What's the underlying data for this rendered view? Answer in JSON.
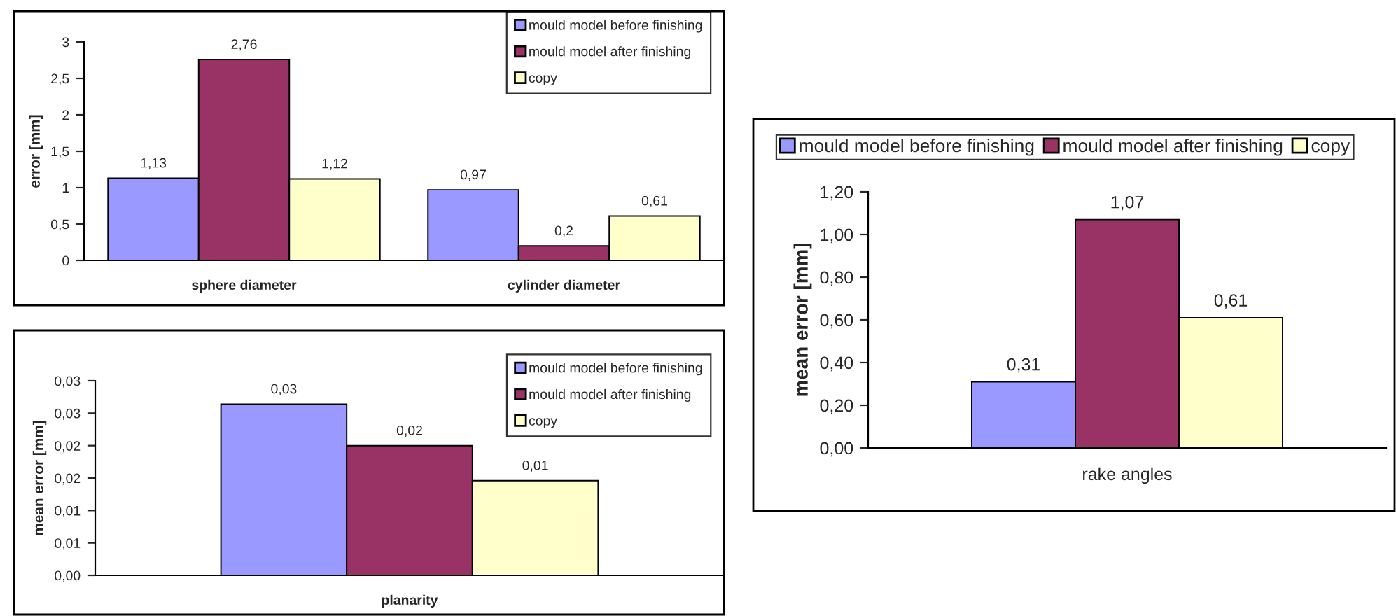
{
  "chart_data": [
    {
      "type": "bar",
      "ylabel": "error [mm]",
      "categories": [
        "sphere diameter",
        "cylinder diameter"
      ],
      "series": [
        {
          "name": "mould model before finishing",
          "color": "#9999ff",
          "values": [
            1.13,
            0.97
          ],
          "value_labels": [
            "1,13",
            "0,97"
          ]
        },
        {
          "name": "mould model after finishing",
          "color": "#993366",
          "values": [
            2.76,
            0.2
          ],
          "value_labels": [
            "2,76",
            "0,2"
          ]
        },
        {
          "name": "copy",
          "color": "#ffffcc",
          "values": [
            1.12,
            0.61
          ],
          "value_labels": [
            "1,12",
            "0,61"
          ]
        }
      ],
      "ylim": [
        0,
        3
      ],
      "yticks": [
        0,
        {
          "value": 0.5,
          "label": "0,5"
        },
        1,
        {
          "value": 1.5,
          "label": "1,5"
        },
        2,
        {
          "value": 2.5,
          "label": "2,5"
        },
        3
      ],
      "grid": false,
      "legend": "top right"
    },
    {
      "type": "bar",
      "ylabel": "mean error [mm]",
      "categories": [
        "planarity"
      ],
      "series": [
        {
          "name": "mould model before finishing",
          "color": "#9999ff",
          "values": [
            0.0264
          ],
          "value_labels": [
            "0,03"
          ]
        },
        {
          "name": "mould model after finishing",
          "color": "#993366",
          "values": [
            0.02
          ],
          "value_labels": [
            "0,02"
          ]
        },
        {
          "name": "copy",
          "color": "#ffffcc",
          "values": [
            0.0146
          ],
          "value_labels": [
            "0,01"
          ]
        }
      ],
      "ylim": [
        0,
        0.03
      ],
      "yticks": [
        {
          "value": 0,
          "label": "0,00"
        },
        {
          "value": 0.005,
          "label": "0,01"
        },
        {
          "value": 0.01,
          "label": "0,01"
        },
        {
          "value": 0.015,
          "label": "0,02"
        },
        {
          "value": 0.02,
          "label": "0,02"
        },
        {
          "value": 0.025,
          "label": "0,03"
        },
        {
          "value": 0.03,
          "label": "0,03"
        }
      ],
      "grid": false,
      "legend": "top right"
    },
    {
      "type": "bar",
      "ylabel": "mean error [mm]",
      "categories": [
        "rake angles"
      ],
      "series": [
        {
          "name": "mould model before finishing",
          "color": "#9999ff",
          "values": [
            0.31
          ],
          "value_labels": [
            "0,31"
          ]
        },
        {
          "name": "mould model after finishing",
          "color": "#993366",
          "values": [
            1.07
          ],
          "value_labels": [
            "1,07"
          ]
        },
        {
          "name": "copy",
          "color": "#ffffcc",
          "values": [
            0.61
          ],
          "value_labels": [
            "0,61"
          ]
        }
      ],
      "ylim": [
        0,
        1.2
      ],
      "yticks": [
        {
          "value": 0,
          "label": "0,00"
        },
        {
          "value": 0.2,
          "label": "0,20"
        },
        {
          "value": 0.4,
          "label": "0,40"
        },
        {
          "value": 0.6,
          "label": "0,60"
        },
        {
          "value": 0.8,
          "label": "0,80"
        },
        {
          "value": 1.0,
          "label": "1,00"
        },
        {
          "value": 1.2,
          "label": "1,20"
        }
      ],
      "grid": false,
      "legend": "top"
    }
  ]
}
